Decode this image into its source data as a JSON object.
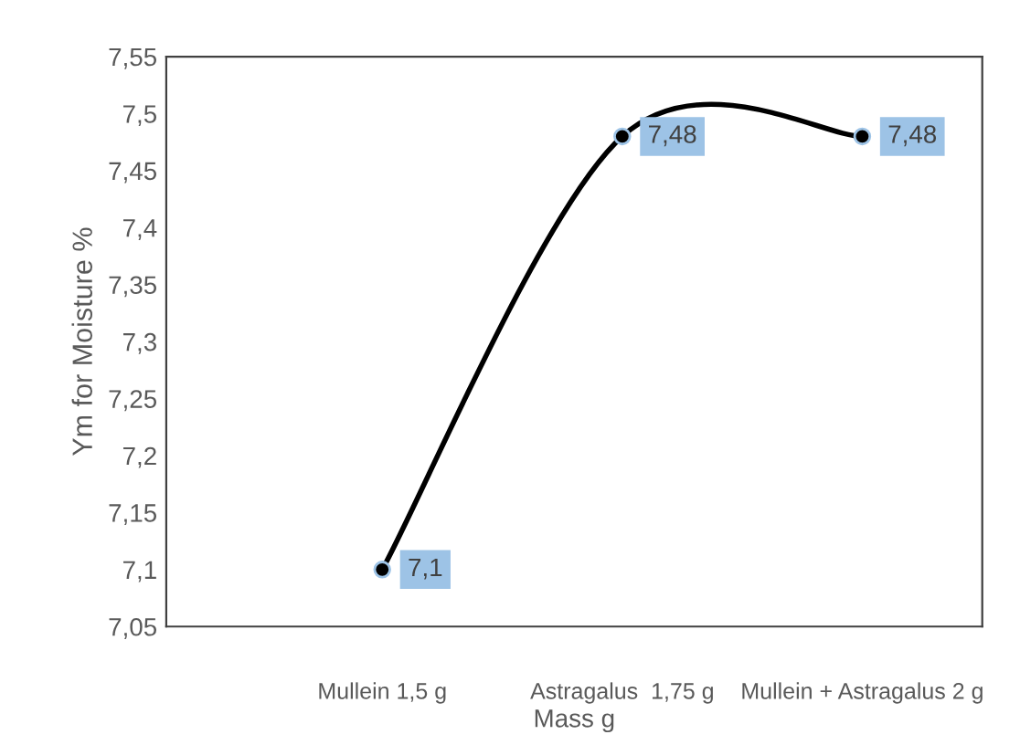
{
  "chart_data": {
    "type": "line",
    "xlabel": "Mass g",
    "ylabel": "Ym for Moisture %",
    "categories": [
      "Mullein 1,5 g",
      "Astragalus  1,75 g",
      "Mullein + Astragalus 2 g"
    ],
    "series": [
      {
        "color": "#000000",
        "values": [
          7.1,
          7.48,
          7.48
        ],
        "value_labels": [
          "7,1",
          "7,48",
          "7,48"
        ]
      }
    ],
    "ylim": [
      7.05,
      7.55
    ],
    "yticks": [
      {
        "value": 7.05,
        "label": "7,05"
      },
      {
        "value": 7.1,
        "label": "7,1"
      },
      {
        "value": 7.15,
        "label": "7,15"
      },
      {
        "value": 7.2,
        "label": "7,2"
      },
      {
        "value": 7.25,
        "label": "7,25"
      },
      {
        "value": 7.3,
        "label": "7,3"
      },
      {
        "value": 7.35,
        "label": "7,35"
      },
      {
        "value": 7.4,
        "label": "7,4"
      },
      {
        "value": 7.45,
        "label": "7,45"
      },
      {
        "value": 7.5,
        "label": "7,5"
      },
      {
        "value": 7.55,
        "label": "7,55"
      }
    ],
    "marker": "circle",
    "line_style": "solid",
    "grid": false,
    "legend": false
  }
}
